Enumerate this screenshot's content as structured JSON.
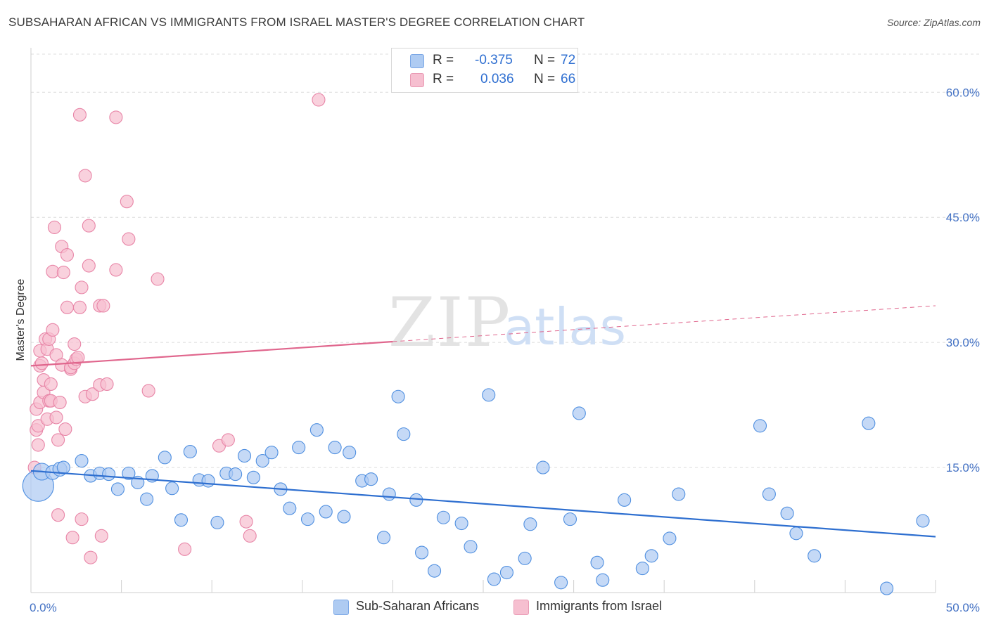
{
  "title": "SUBSAHARAN AFRICAN VS IMMIGRANTS FROM ISRAEL MASTER'S DEGREE CORRELATION CHART",
  "source": "Source: ZipAtlas.com",
  "watermark": {
    "zip": "ZIP",
    "atlas": "atlas"
  },
  "legend": {
    "rows": [
      {
        "r_label": "R =",
        "r_value": "-0.375",
        "n_label": "N =",
        "n_value": "72",
        "color": "#aecbf2"
      },
      {
        "r_label": "R =",
        "r_value": "0.036",
        "n_label": "N =",
        "n_value": "66",
        "color": "#f6bfd0"
      }
    ]
  },
  "bottom_legend": [
    {
      "label": "Sub-Saharan Africans",
      "color": "#aecbf2"
    },
    {
      "label": "Immigrants from Israel",
      "color": "#f6bfd0"
    }
  ],
  "chart_data": {
    "type": "scatter",
    "title": "SUBSAHARAN AFRICAN VS IMMIGRANTS FROM ISRAEL MASTER'S DEGREE CORRELATION CHART",
    "xlabel": "",
    "ylabel": "Master's Degree",
    "xlim": [
      0,
      50
    ],
    "ylim": [
      0,
      65
    ],
    "x_tick_labels": [
      "0.0%",
      "50.0%"
    ],
    "y_ticks": [
      15,
      30,
      45,
      60
    ],
    "y_tick_labels": [
      "15.0%",
      "30.0%",
      "45.0%",
      "60.0%"
    ],
    "grid": true,
    "legend_placement": "top-center",
    "series": [
      {
        "name": "Sub-Saharan Africans",
        "color": "#4f8fe0",
        "fill": "#aecbf2",
        "trend": {
          "x": [
            0,
            50
          ],
          "y": [
            14.6,
            6.7
          ],
          "style": "solid",
          "color": "#2e6fd0"
        },
        "points": [
          [
            0.4,
            12.8,
            22
          ],
          [
            0.6,
            14.5,
            12
          ],
          [
            1.2,
            14.4,
            10
          ],
          [
            1.6,
            14.8,
            10
          ],
          [
            1.8,
            15.0,
            9
          ],
          [
            2.8,
            15.8,
            9
          ],
          [
            3.3,
            14.0,
            9
          ],
          [
            3.8,
            14.3,
            9
          ],
          [
            4.3,
            14.2,
            9
          ],
          [
            4.8,
            12.4,
            9
          ],
          [
            5.4,
            14.3,
            9
          ],
          [
            5.9,
            13.2,
            9
          ],
          [
            6.4,
            11.2,
            9
          ],
          [
            6.7,
            14.0,
            9
          ],
          [
            7.4,
            16.2,
            9
          ],
          [
            7.8,
            12.5,
            9
          ],
          [
            8.3,
            8.7,
            9
          ],
          [
            8.8,
            16.9,
            9
          ],
          [
            9.3,
            13.5,
            9
          ],
          [
            9.8,
            13.4,
            9
          ],
          [
            10.3,
            8.4,
            9
          ],
          [
            10.8,
            14.3,
            9
          ],
          [
            11.3,
            14.2,
            9
          ],
          [
            11.8,
            16.4,
            9
          ],
          [
            12.3,
            13.8,
            9
          ],
          [
            12.8,
            15.8,
            9
          ],
          [
            13.3,
            16.8,
            9
          ],
          [
            13.8,
            12.4,
            9
          ],
          [
            14.3,
            10.1,
            9
          ],
          [
            14.8,
            17.4,
            9
          ],
          [
            15.3,
            8.8,
            9
          ],
          [
            15.8,
            19.5,
            9
          ],
          [
            16.3,
            9.7,
            9
          ],
          [
            16.8,
            17.4,
            9
          ],
          [
            17.3,
            9.1,
            9
          ],
          [
            17.6,
            16.8,
            9
          ],
          [
            18.3,
            13.4,
            9
          ],
          [
            18.8,
            13.6,
            9
          ],
          [
            19.5,
            6.6,
            9
          ],
          [
            19.8,
            11.8,
            9
          ],
          [
            20.3,
            23.5,
            9
          ],
          [
            20.6,
            19.0,
            9
          ],
          [
            21.3,
            11.1,
            9
          ],
          [
            21.6,
            4.8,
            9
          ],
          [
            22.3,
            2.6,
            9
          ],
          [
            22.8,
            9.0,
            9
          ],
          [
            23.8,
            8.3,
            9
          ],
          [
            24.3,
            5.5,
            9
          ],
          [
            25.3,
            23.7,
            9
          ],
          [
            25.6,
            1.6,
            9
          ],
          [
            26.3,
            2.4,
            9
          ],
          [
            27.3,
            4.1,
            9
          ],
          [
            27.6,
            8.2,
            9
          ],
          [
            28.3,
            15.0,
            9
          ],
          [
            29.3,
            1.2,
            9
          ],
          [
            29.8,
            8.8,
            9
          ],
          [
            30.3,
            21.5,
            9
          ],
          [
            31.3,
            3.6,
            9
          ],
          [
            31.6,
            1.5,
            9
          ],
          [
            32.8,
            11.1,
            9
          ],
          [
            33.8,
            2.9,
            9
          ],
          [
            34.3,
            4.4,
            9
          ],
          [
            35.3,
            6.5,
            9
          ],
          [
            35.8,
            11.8,
            9
          ],
          [
            40.3,
            20.0,
            9
          ],
          [
            40.8,
            11.8,
            9
          ],
          [
            41.8,
            9.5,
            9
          ],
          [
            42.3,
            7.1,
            9
          ],
          [
            43.3,
            4.4,
            9
          ],
          [
            46.3,
            20.3,
            9
          ],
          [
            47.3,
            0.5,
            9
          ],
          [
            49.3,
            8.6,
            9
          ]
        ]
      },
      {
        "name": "Immigrants from Israel",
        "color": "#e885a7",
        "fill": "#f6bfd0",
        "trend": {
          "x": [
            0,
            20,
            50
          ],
          "y": [
            27.2,
            30.1,
            34.4
          ],
          "solid_until": 20,
          "style": "solid-then-dashed",
          "color": "#e0668d"
        },
        "points": [
          [
            0.2,
            15.0,
            9
          ],
          [
            0.3,
            19.5,
            9
          ],
          [
            0.3,
            22.0,
            9
          ],
          [
            0.4,
            20.0,
            9
          ],
          [
            0.4,
            17.7,
            9
          ],
          [
            0.5,
            22.8,
            9
          ],
          [
            0.5,
            27.2,
            9
          ],
          [
            0.5,
            29.0,
            9
          ],
          [
            0.6,
            27.5,
            9
          ],
          [
            0.7,
            25.5,
            9
          ],
          [
            0.7,
            24.0,
            9
          ],
          [
            0.8,
            30.4,
            9
          ],
          [
            0.9,
            29.2,
            9
          ],
          [
            0.9,
            20.8,
            9
          ],
          [
            1.0,
            30.4,
            9
          ],
          [
            1.0,
            23.0,
            9
          ],
          [
            1.1,
            25.0,
            9
          ],
          [
            1.1,
            23.0,
            9
          ],
          [
            1.2,
            38.5,
            9
          ],
          [
            1.2,
            31.5,
            9
          ],
          [
            1.3,
            43.8,
            9
          ],
          [
            1.4,
            28.5,
            9
          ],
          [
            1.4,
            21.0,
            9
          ],
          [
            1.5,
            9.3,
            9
          ],
          [
            1.5,
            18.3,
            9
          ],
          [
            1.6,
            22.8,
            9
          ],
          [
            1.7,
            41.5,
            9
          ],
          [
            1.7,
            27.3,
            9
          ],
          [
            1.8,
            38.4,
            9
          ],
          [
            1.9,
            19.6,
            9
          ],
          [
            2.0,
            40.5,
            9
          ],
          [
            2.0,
            34.2,
            9
          ],
          [
            2.2,
            26.8,
            9
          ],
          [
            2.2,
            27.0,
            9
          ],
          [
            2.3,
            6.6,
            9
          ],
          [
            2.4,
            27.5,
            9
          ],
          [
            2.4,
            29.8,
            9
          ],
          [
            2.5,
            28.0,
            9
          ],
          [
            2.6,
            28.2,
            9
          ],
          [
            2.7,
            57.3,
            9
          ],
          [
            2.7,
            34.2,
            9
          ],
          [
            2.8,
            36.6,
            9
          ],
          [
            2.8,
            8.8,
            9
          ],
          [
            3.0,
            23.5,
            9
          ],
          [
            3.0,
            50.0,
            9
          ],
          [
            3.2,
            39.2,
            9
          ],
          [
            3.2,
            44.0,
            9
          ],
          [
            3.3,
            4.2,
            9
          ],
          [
            3.4,
            23.8,
            9
          ],
          [
            3.8,
            34.4,
            9
          ],
          [
            3.8,
            24.9,
            9
          ],
          [
            3.9,
            6.8,
            9
          ],
          [
            4.0,
            34.4,
            9
          ],
          [
            4.2,
            25.0,
            9
          ],
          [
            4.7,
            57.0,
            9
          ],
          [
            4.7,
            38.7,
            9
          ],
          [
            5.3,
            46.9,
            9
          ],
          [
            5.4,
            42.4,
            9
          ],
          [
            6.5,
            24.2,
            9
          ],
          [
            7.0,
            37.6,
            9
          ],
          [
            8.5,
            5.2,
            9
          ],
          [
            10.4,
            17.6,
            9
          ],
          [
            10.9,
            18.3,
            9
          ],
          [
            11.9,
            8.5,
            9
          ],
          [
            12.1,
            6.8,
            9
          ],
          [
            15.9,
            59.1,
            9
          ]
        ]
      }
    ]
  }
}
